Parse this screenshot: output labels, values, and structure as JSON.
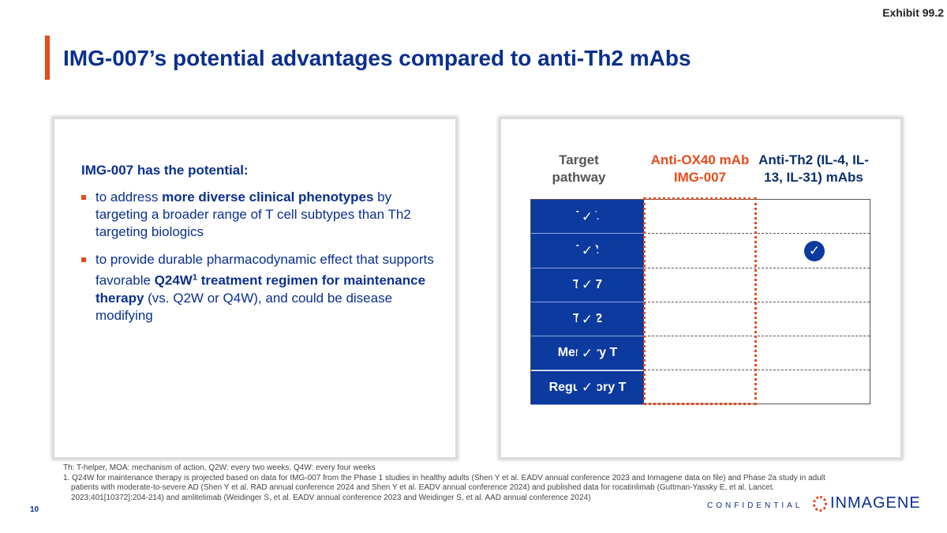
{
  "exhibit": "Exhibit 99.2",
  "title": "IMG-007’s potential advantages compared to anti-Th2 mAbs",
  "left": {
    "heading": "IMG-007 has the potential:",
    "bullets": [
      {
        "pre": "to address ",
        "bold": "more diverse clinical phenotypes",
        "post": " by targeting a broader range of T cell subtypes than Th2 targeting biologics"
      },
      {
        "pre": "to provide durable pharmacodynamic effect that supports favorable ",
        "bold": "Q24W",
        "sup": "1",
        "bold2": " treatment regimen for maintenance therapy",
        "post": " (vs. Q2W or Q4W), and could be disease modifying"
      }
    ]
  },
  "table": {
    "headers": [
      "Target pathway",
      "Anti-OX40 mAb IMG-007",
      "Anti-Th2 (IL-4, IL-13, IL-31) mAbs"
    ],
    "rows": [
      {
        "label": "Th1",
        "img007": true,
        "th2": false
      },
      {
        "label": "Th2",
        "img007": true,
        "th2": true
      },
      {
        "label": "Th17",
        "img007": true,
        "th2": false
      },
      {
        "label": "Th22",
        "img007": true,
        "th2": false
      },
      {
        "label": "Memory T",
        "img007": true,
        "th2": false
      },
      {
        "label": "Regulatory T",
        "img007": true,
        "th2": false
      }
    ],
    "check_glyph": "✓",
    "colors": {
      "accent": "#e84a1a",
      "navy": "#0c3a9e"
    }
  },
  "footnotes": [
    "Th: T-helper, MOA: mechanism of action, Q2W: every two weeks, Q4W: every four weeks",
    "1.  Q24W for maintenance therapy is projected based on data for IMG-007 from the Phase 1 studies in healthy adults (Shen Y et al. EADV annual conference 2023 and Inmagene data on file) and Phase 2a study in adult patients with moderate-to-severe AD (Shen Y et al. RAD annual conference 2024 and Shen Y et al. EADV annual conference 2024) and published data for rocatinlimab (Guttman-Yassky E, et al. Lancet. 2023;401[10372]:204-214) and amlitelimab (Weidinger S, et al. EADV annual conference 2023 and Weidinger S, et al. AAD annual conference 2024)"
  ],
  "page_number": "10",
  "confidential": "CONFIDENTIAL",
  "logo_text": "INMAGENE"
}
